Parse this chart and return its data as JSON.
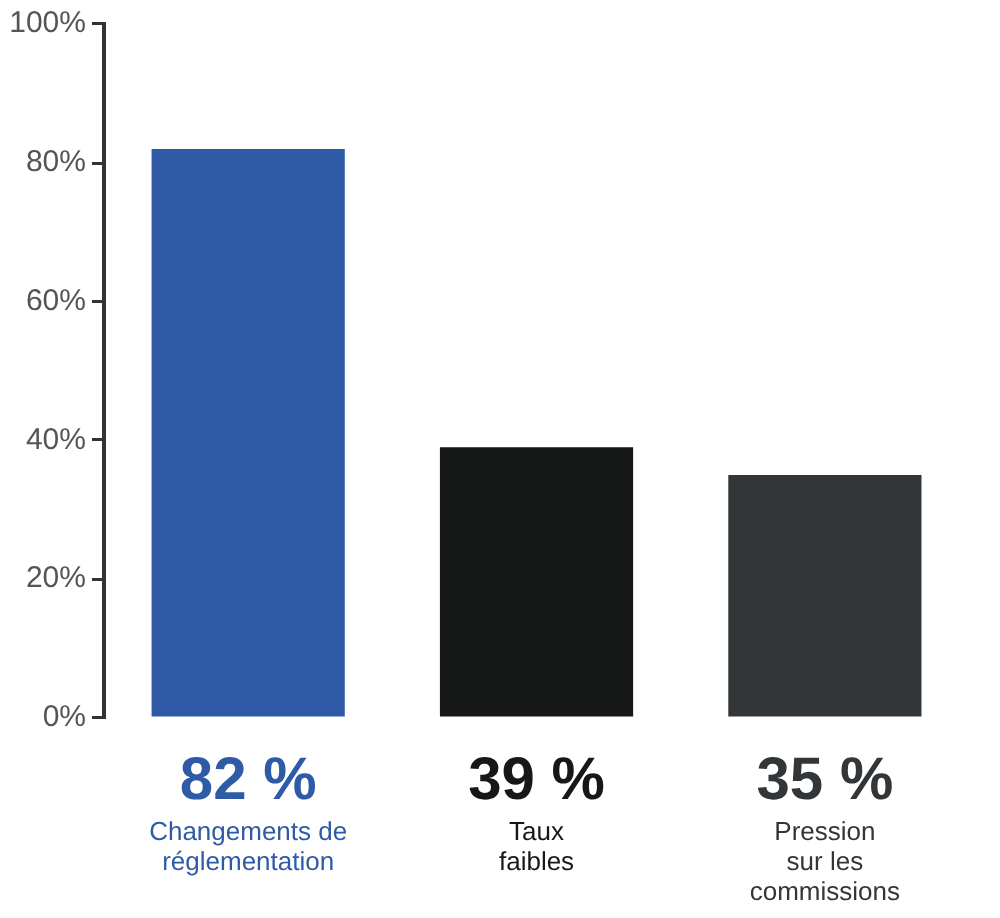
{
  "chart_data": {
    "type": "bar",
    "categories": [
      "Changements de\nréglementation",
      "Taux\nfaibles",
      "Pression\nsur les\ncommissions"
    ],
    "values": [
      82,
      39,
      35
    ],
    "colors": [
      "#2e5aa6",
      "#161817",
      "#333638"
    ],
    "value_labels": [
      "82 %",
      "39 %",
      "35 %"
    ],
    "ylim": [
      0,
      100
    ],
    "yticks": [
      {
        "value": 0,
        "label": "0%"
      },
      {
        "value": 20,
        "label": "20%"
      },
      {
        "value": 40,
        "label": "40%"
      },
      {
        "value": 60,
        "label": "60%"
      },
      {
        "value": 80,
        "label": "80%"
      },
      {
        "value": 100,
        "label": "100%"
      }
    ]
  }
}
